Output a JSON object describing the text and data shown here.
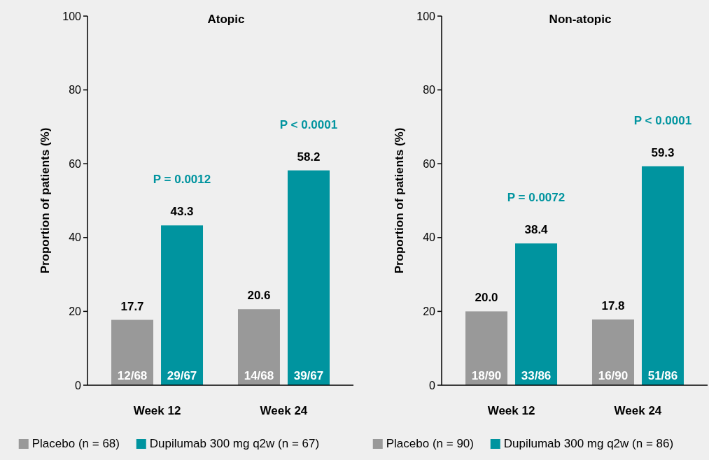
{
  "chart_data": [
    {
      "type": "bar",
      "title": "Atopic",
      "ylabel": "Proportion of patients (%)",
      "categories": [
        "Week 12",
        "Week 24"
      ],
      "series": [
        {
          "name": "Placebo (n = 68)",
          "color": "#999999",
          "values": [
            17.7,
            20.6
          ],
          "value_labels": [
            "17.7",
            "20.6"
          ]
        },
        {
          "name": "Dupilumab 300 mg q2w (n = 67)",
          "color": "#00949f",
          "values": [
            43.3,
            58.2
          ],
          "value_labels": [
            "43.3",
            "58.2"
          ]
        }
      ],
      "ylim": [
        0,
        100
      ],
      "yticks": [
        0,
        20,
        40,
        60,
        80,
        100
      ],
      "legend": "bottom",
      "annotations": [
        "P = 0.0012",
        "P < 0.0001",
        "12/68",
        "14/68",
        "29/67",
        "39/67"
      ]
    },
    {
      "type": "bar",
      "title": "Non-atopic",
      "ylabel": "Proportion of patients (%)",
      "categories": [
        "Week 12",
        "Week 24"
      ],
      "series": [
        {
          "name": "Placebo (n = 90)",
          "color": "#999999",
          "values": [
            20.0,
            17.8
          ],
          "value_labels": [
            "20.0",
            "17.8"
          ]
        },
        {
          "name": "Dupilumab 300 mg q2w (n = 86)",
          "color": "#00949f",
          "values": [
            38.4,
            59.3
          ],
          "value_labels": [
            "38.4",
            "59.3"
          ]
        }
      ],
      "ylim": [
        0,
        100
      ],
      "yticks": [
        0,
        20,
        40,
        60,
        80,
        100
      ],
      "legend": "bottom",
      "annotations": [
        "P = 0.0072",
        "P < 0.0001",
        "18/90",
        "16/90",
        "33/86",
        "51/86"
      ]
    }
  ]
}
